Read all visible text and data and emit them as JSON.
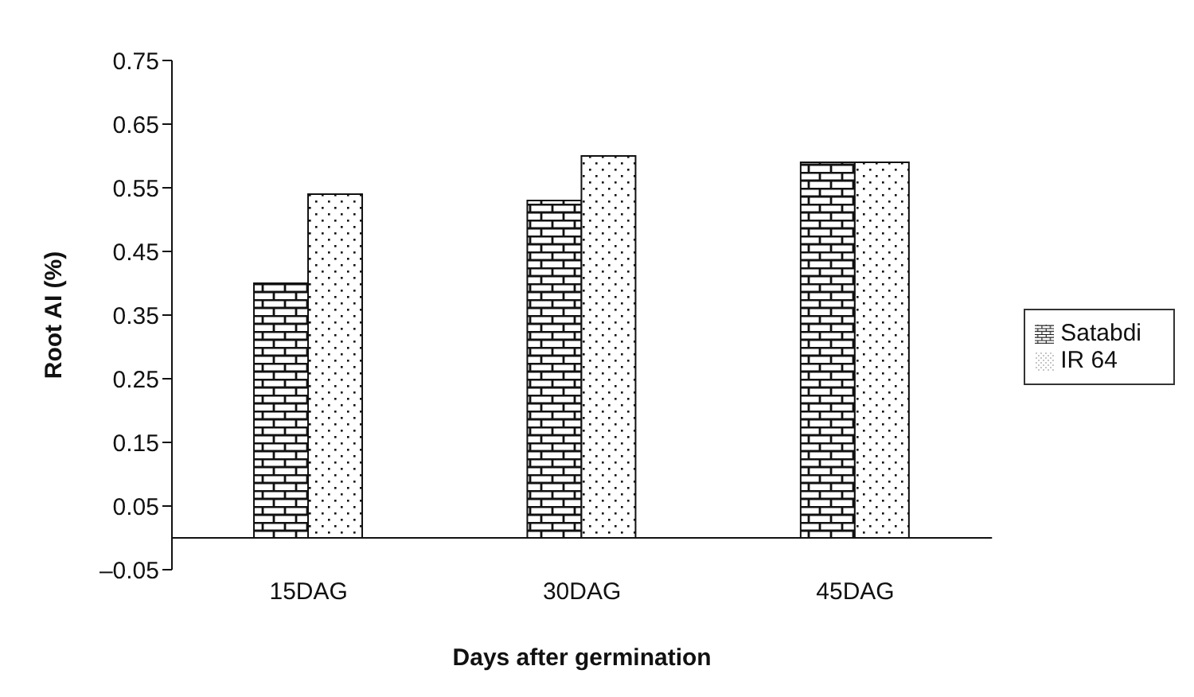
{
  "chart_data": {
    "type": "bar",
    "xlabel": "Days after germination",
    "ylabel": "Root AI (%)",
    "categories": [
      "15DAG",
      "30DAG",
      "45DAG"
    ],
    "series": [
      {
        "name": "Satabdi",
        "color": "#111111",
        "values": [
          0.4,
          0.53,
          0.59
        ]
      },
      {
        "name": "IR 64",
        "color": "#111111",
        "values": [
          0.54,
          0.6,
          0.59
        ]
      }
    ],
    "ylim": [
      -0.05,
      0.75
    ],
    "yticks": [
      {
        "value": -0.05,
        "label": "–0.05"
      },
      0.05,
      0.15,
      0.25,
      0.35,
      0.45,
      0.55,
      0.65,
      0.75
    ],
    "grid": false,
    "legend": "right"
  }
}
